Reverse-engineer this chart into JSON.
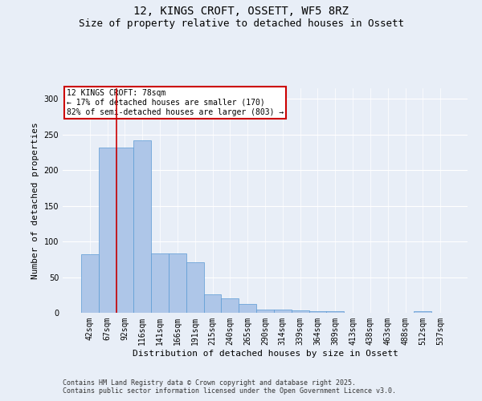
{
  "title_line1": "12, KINGS CROFT, OSSETT, WF5 8RZ",
  "title_line2": "Size of property relative to detached houses in Ossett",
  "xlabel": "Distribution of detached houses by size in Ossett",
  "ylabel": "Number of detached properties",
  "footer_line1": "Contains HM Land Registry data © Crown copyright and database right 2025.",
  "footer_line2": "Contains public sector information licensed under the Open Government Licence v3.0.",
  "annotation_title": "12 KINGS CROFT: 78sqm",
  "annotation_line2": "← 17% of detached houses are smaller (170)",
  "annotation_line3": "82% of semi-detached houses are larger (803) →",
  "bar_labels": [
    "42sqm",
    "67sqm",
    "92sqm",
    "116sqm",
    "141sqm",
    "166sqm",
    "191sqm",
    "215sqm",
    "240sqm",
    "265sqm",
    "290sqm",
    "314sqm",
    "339sqm",
    "364sqm",
    "389sqm",
    "413sqm",
    "438sqm",
    "463sqm",
    "488sqm",
    "512sqm",
    "537sqm"
  ],
  "bar_values": [
    82,
    232,
    232,
    242,
    83,
    83,
    71,
    26,
    20,
    12,
    4,
    4,
    3,
    2,
    2,
    0,
    0,
    0,
    0,
    2,
    0
  ],
  "bar_color": "#aec6e8",
  "bar_edge_color": "#5b9bd5",
  "red_line_x": 1.5,
  "ylim": [
    0,
    315
  ],
  "yticks": [
    0,
    50,
    100,
    150,
    200,
    250,
    300
  ],
  "background_color": "#e8eef7",
  "plot_bg_color": "#e8eef7",
  "annotation_box_color": "#ffffff",
  "annotation_box_edge_color": "#cc0000",
  "red_line_color": "#cc0000",
  "title_fontsize": 10,
  "subtitle_fontsize": 9,
  "axis_label_fontsize": 8,
  "tick_fontsize": 7,
  "annotation_fontsize": 7,
  "footer_fontsize": 6
}
